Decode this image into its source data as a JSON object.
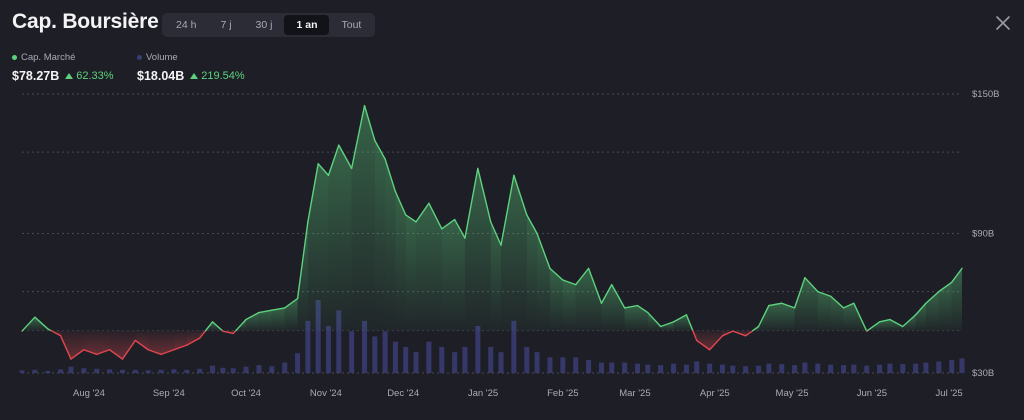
{
  "header": {
    "title": "Cap. Boursière",
    "tabs": [
      "24 h",
      "7 j",
      "30 j",
      "1 an",
      "Tout"
    ],
    "active_tab": "1 an"
  },
  "legend": {
    "market_cap": {
      "label": "Cap. Marché",
      "value": "$78.27B",
      "change": "62.33%",
      "color": "#5dd27e"
    },
    "volume": {
      "label": "Volume",
      "value": "$18.04B",
      "change": "219.54%",
      "color": "#3a3f78"
    }
  },
  "colors": {
    "up": "#5dd27e",
    "down": "#e0464e",
    "volume": "#3d4280",
    "grid": "#5a5b66",
    "baseline": "#3a3b45"
  },
  "chart_data": {
    "type": "area",
    "title": "",
    "x_ticks": [
      "Aug '24",
      "Sep '24",
      "Oct '24",
      "Nov '24",
      "Dec '24",
      "Jan '25",
      "Feb '25",
      "Mar '25",
      "Apr '25",
      "May '25",
      "Jun '25",
      "Jul '25"
    ],
    "y_ticks": [
      "$150B",
      "$90B",
      "$30B"
    ],
    "ylim": [
      30,
      150
    ],
    "baseline": 48.2,
    "grid": true,
    "series": [
      {
        "name": "Cap. Marché",
        "x": [
          "2024-07-20",
          "2024-07-25",
          "2024-07-30",
          "2024-08-04",
          "2024-08-08",
          "2024-08-13",
          "2024-08-18",
          "2024-08-23",
          "2024-08-28",
          "2024-09-02",
          "2024-09-07",
          "2024-09-12",
          "2024-09-17",
          "2024-09-22",
          "2024-09-27",
          "2024-10-02",
          "2024-10-06",
          "2024-10-10",
          "2024-10-15",
          "2024-10-20",
          "2024-10-25",
          "2024-10-30",
          "2024-11-04",
          "2024-11-08",
          "2024-11-12",
          "2024-11-16",
          "2024-11-20",
          "2024-11-25",
          "2024-11-30",
          "2024-12-04",
          "2024-12-08",
          "2024-12-12",
          "2024-12-16",
          "2024-12-20",
          "2024-12-25",
          "2024-12-30",
          "2025-01-04",
          "2025-01-08",
          "2025-01-13",
          "2025-01-18",
          "2025-01-22",
          "2025-01-27",
          "2025-02-01",
          "2025-02-05",
          "2025-02-10",
          "2025-02-15",
          "2025-02-20",
          "2025-02-25",
          "2025-03-02",
          "2025-03-06",
          "2025-03-11",
          "2025-03-16",
          "2025-03-20",
          "2025-03-25",
          "2025-03-30",
          "2025-04-04",
          "2025-04-08",
          "2025-04-13",
          "2025-04-18",
          "2025-04-22",
          "2025-04-27",
          "2025-05-02",
          "2025-05-06",
          "2025-05-11",
          "2025-05-16",
          "2025-05-20",
          "2025-05-25",
          "2025-05-30",
          "2025-06-04",
          "2025-06-08",
          "2025-06-13",
          "2025-06-18",
          "2025-06-22",
          "2025-06-27",
          "2025-07-02",
          "2025-07-06",
          "2025-07-11",
          "2025-07-16",
          "2025-07-20"
        ],
        "values": [
          48,
          54,
          49,
          46,
          36,
          40,
          38,
          40,
          36,
          44,
          40,
          38,
          40,
          42,
          45,
          52,
          48,
          47,
          53,
          56,
          57,
          58,
          62,
          95,
          120,
          115,
          128,
          118,
          145,
          130,
          122,
          108,
          98,
          95,
          103,
          92,
          96,
          88,
          118,
          95,
          85,
          115,
          98,
          90,
          75,
          70,
          68,
          75,
          60,
          68,
          58,
          59,
          56,
          50,
          52,
          55,
          44,
          40,
          46,
          48,
          46,
          50,
          59,
          60,
          58,
          71,
          65,
          63,
          58,
          60,
          48,
          52,
          53,
          50,
          55,
          60,
          65,
          69,
          75
        ]
      },
      {
        "name": "Volume",
        "values": [
          0.5,
          0.6,
          0.4,
          0.7,
          1.2,
          0.9,
          0.8,
          0.7,
          0.6,
          0.6,
          0.5,
          0.6,
          0.7,
          0.6,
          0.8,
          1.4,
          1.0,
          0.9,
          1.2,
          1.5,
          1.3,
          2.0,
          3.8,
          10,
          14,
          9,
          12,
          8,
          10,
          7,
          8,
          6,
          5,
          4,
          6,
          5,
          4,
          5,
          9,
          5,
          4,
          10,
          5,
          4,
          3,
          3,
          3,
          2.5,
          2,
          2,
          2,
          1.8,
          1.6,
          1.5,
          1.8,
          1.6,
          2.2,
          1.8,
          1.6,
          1.4,
          1.3,
          1.4,
          1.8,
          1.7,
          1.5,
          2.0,
          1.8,
          1.6,
          1.5,
          1.6,
          1.4,
          1.6,
          1.8,
          1.7,
          1.8,
          2.0,
          2.2,
          2.5,
          2.8
        ]
      }
    ]
  }
}
